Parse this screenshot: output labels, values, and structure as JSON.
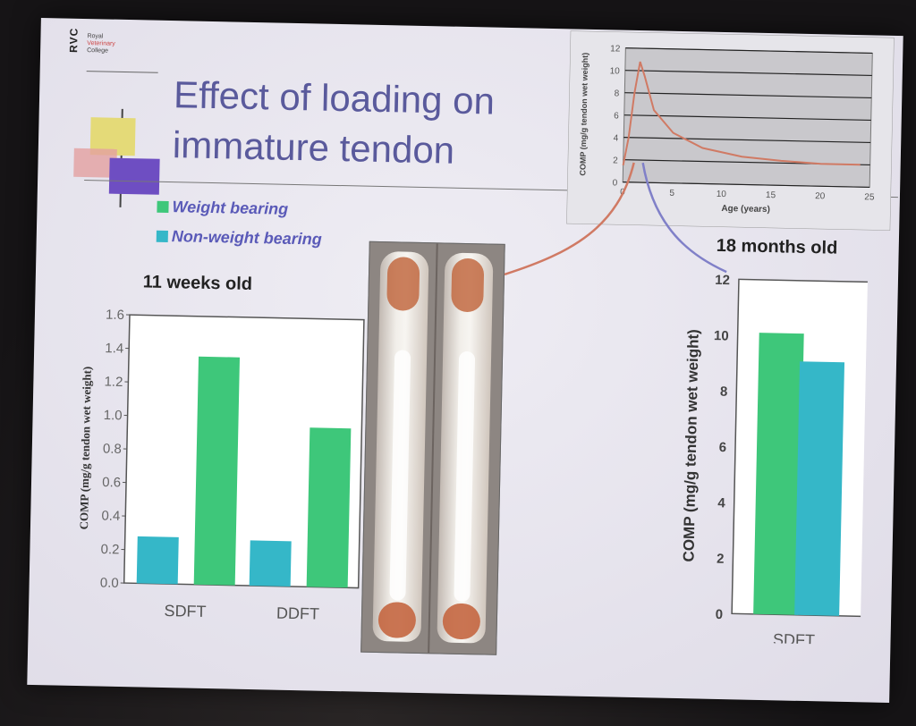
{
  "logo": {
    "mark": "RVC",
    "lines": [
      "Royal",
      "Veterinary",
      "College"
    ]
  },
  "title": "Effect of loading on\nimmature tendon",
  "legend": [
    {
      "label": "Weight bearing",
      "color": "#3ec77a"
    },
    {
      "label": "Non-weight bearing",
      "color": "#35b7c8"
    }
  ],
  "captions": {
    "left": "11 weeks old",
    "right": "18 months old"
  },
  "chart_data": [
    {
      "type": "bar",
      "ylabel": "COMP (mg/g tendon wet weight)",
      "ylim": [
        0,
        1.6
      ],
      "yticks": [
        "0.0",
        "0.2",
        "0.4",
        "0.6",
        "0.8",
        "1.0",
        "1.2",
        "1.4",
        "1.6"
      ],
      "categories": [
        "SDFT",
        "DDFT"
      ],
      "series": [
        {
          "name": "Non-weight bearing",
          "color": "#35b7c8",
          "values": [
            0.28,
            0.27
          ]
        },
        {
          "name": "Weight bearing",
          "color": "#3ec77a",
          "values": [
            1.36,
            0.95
          ]
        }
      ]
    },
    {
      "type": "bar",
      "ylabel": "COMP (mg/g tendon wet weight)",
      "ylim": [
        0,
        12
      ],
      "yticks": [
        "0",
        "2",
        "4",
        "6",
        "8",
        "10",
        "12"
      ],
      "categories": [
        "SDFT"
      ],
      "series": [
        {
          "name": "Weight bearing",
          "color": "#3ec77a",
          "values": [
            10.1
          ]
        },
        {
          "name": "Non-weight bearing",
          "color": "#35b7c8",
          "values": [
            9.1
          ]
        }
      ]
    },
    {
      "type": "line",
      "xlabel": "Age (years)",
      "ylabel": "COMP (mg/g tendon wet weight)",
      "xlim": [
        0,
        25
      ],
      "ylim": [
        0,
        12
      ],
      "xticks": [
        "0",
        "5",
        "10",
        "15",
        "20",
        "25"
      ],
      "yticks": [
        "0",
        "2",
        "4",
        "6",
        "8",
        "10",
        "12"
      ],
      "series": [
        {
          "color": "#d07a64",
          "x": [
            0,
            0.5,
            1,
            1.5,
            2,
            3,
            5,
            8,
            12,
            16,
            20,
            24
          ],
          "y": [
            1.5,
            4,
            8,
            10.8,
            9.5,
            6.5,
            4.5,
            3.2,
            2.5,
            2.2,
            2.0,
            2.0
          ]
        }
      ]
    }
  ]
}
